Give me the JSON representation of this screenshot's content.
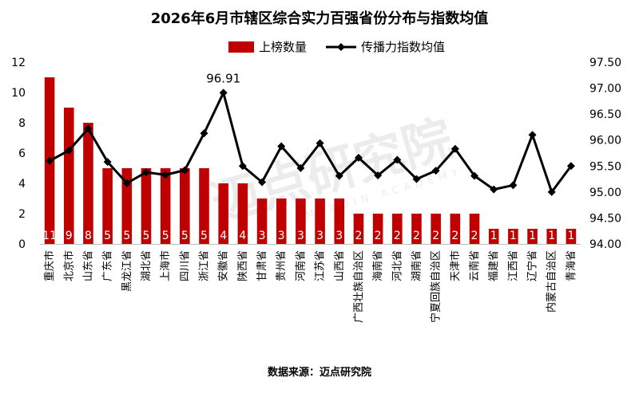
{
  "chart_data": {
    "type": "bar",
    "title": "2026年6月市辖区综合实力百强省份分布与指数均值",
    "source_note": "数据来源：迈点研究院",
    "watermark_text": "迈点研究院",
    "watermark_sub": "MEADIN ACADEMY",
    "legend": {
      "placement": "top",
      "bar_label": "上榜数量",
      "line_label": "传播力指数均值"
    },
    "categories": [
      "重庆市",
      "北京市",
      "山东省",
      "广东省",
      "黑龙江省",
      "湖北省",
      "上海市",
      "四川省",
      "浙江省",
      "安徽省",
      "陕西省",
      "甘肃省",
      "贵州省",
      "河南省",
      "江苏省",
      "山西省",
      "广西壮族自治区",
      "海南省",
      "河北省",
      "湖南省",
      "宁夏回族自治区",
      "天津市",
      "云南省",
      "福建省",
      "江西省",
      "辽宁省",
      "内蒙古自治区",
      "青海省"
    ],
    "series": [
      {
        "name": "上榜数量",
        "type": "bar",
        "axis": "left",
        "color": "#c00000",
        "values": [
          11,
          9,
          8,
          5,
          5,
          5,
          5,
          5,
          5,
          4,
          4,
          3,
          3,
          3,
          3,
          3,
          2,
          2,
          2,
          2,
          2,
          2,
          2,
          1,
          1,
          1,
          1,
          1
        ]
      },
      {
        "name": "传播力指数均值",
        "type": "line",
        "axis": "right",
        "color": "#000000",
        "values": [
          95.6,
          95.8,
          96.22,
          95.58,
          95.17,
          95.38,
          95.33,
          95.42,
          96.13,
          96.91,
          95.5,
          95.19,
          95.88,
          95.46,
          95.94,
          95.31,
          95.66,
          95.32,
          95.62,
          95.25,
          95.41,
          95.83,
          95.31,
          95.05,
          95.13,
          96.1,
          95.0,
          95.5
        ]
      }
    ],
    "line_annotation": {
      "index": 9,
      "text": "96.91"
    },
    "y_left": {
      "min": 0,
      "max": 12,
      "ticks": [
        "0",
        "2",
        "4",
        "6",
        "8",
        "10",
        "12"
      ]
    },
    "y_right": {
      "min": 94.0,
      "max": 97.5,
      "ticks": [
        "94.00",
        "94.50",
        "95.00",
        "95.50",
        "96.00",
        "96.50",
        "97.00",
        "97.50"
      ]
    },
    "grid": false
  }
}
